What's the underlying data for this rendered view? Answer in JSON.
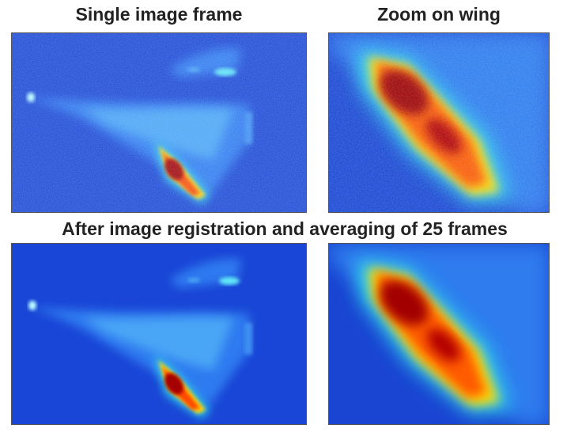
{
  "titles": {
    "single_frame": "Single image frame",
    "zoom_wing": "Zoom on wing",
    "registration": "After image registration and averaging of 25 frames"
  },
  "colormap": {
    "background": "#1946d6",
    "stops": [
      "#00008f",
      "#0000ff",
      "#0080ff",
      "#00ffff",
      "#80ff80",
      "#ffff00",
      "#ff8000",
      "#ff0000",
      "#800000"
    ]
  },
  "panels": [
    {
      "key": "single-frame-full",
      "noisy": true
    },
    {
      "key": "single-frame-zoom",
      "noisy": true
    },
    {
      "key": "averaged-full",
      "noisy": false
    },
    {
      "key": "averaged-zoom",
      "noisy": false
    }
  ]
}
